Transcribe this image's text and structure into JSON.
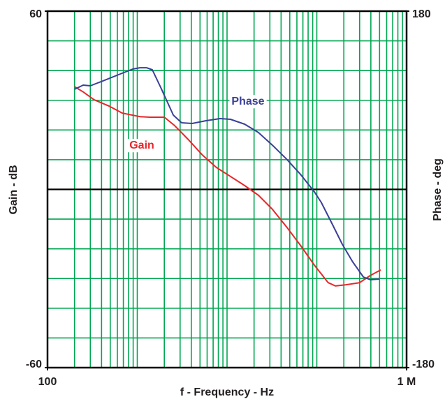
{
  "chart_data": {
    "type": "line",
    "xlabel": "f - Frequency - Hz",
    "ylabel": "Gain - dB",
    "y2label": "Phase - deg",
    "xscale": "log",
    "xlim": [
      100,
      1000000
    ],
    "xticks": [
      {
        "value": 100,
        "label": "100"
      },
      {
        "value": 1000000,
        "label": "1 M"
      }
    ],
    "xgrid": [
      200,
      300,
      400,
      500,
      600,
      700,
      800,
      900,
      1000,
      2000,
      3000,
      4000,
      5000,
      6000,
      7000,
      8000,
      9000,
      10000,
      20000,
      30000,
      40000,
      50000,
      60000,
      70000,
      80000,
      90000,
      100000,
      200000,
      300000,
      400000,
      500000,
      600000,
      700000,
      800000,
      900000
    ],
    "ylim": [
      -60,
      60
    ],
    "yticks": [
      -60,
      60
    ],
    "ygrid": [
      -50,
      -40,
      -30,
      -20,
      -10,
      0,
      10,
      20,
      30,
      40,
      50
    ],
    "y2lim": [
      -180,
      180
    ],
    "y2ticks": [
      -180,
      180
    ],
    "grid": true,
    "grid_color": "#00a651",
    "series": [
      {
        "name": "Gain",
        "color": "#e8262a",
        "x": [
          200,
          250,
          330,
          480,
          680,
          1070,
          1390,
          2000,
          2600,
          3700,
          5300,
          7600,
          11000,
          15700,
          22400,
          32000,
          46000,
          66000,
          94000,
          134000,
          161000,
          210000,
          300000,
          394000,
          515000
        ],
        "values": [
          34.6,
          32.8,
          30.2,
          28.1,
          25.7,
          24.5,
          24.3,
          24.3,
          21.5,
          16.8,
          11.6,
          7.4,
          4.3,
          1.3,
          -2.0,
          -6.7,
          -12.6,
          -18.9,
          -25.5,
          -31.4,
          -32.5,
          -32.1,
          -31.4,
          -29.0,
          -27.1
        ]
      },
      {
        "name": "Phase",
        "color": "#3a3f98",
        "axis": "y2",
        "x": [
          200,
          250,
          300,
          435,
          620,
          890,
          1070,
          1270,
          1470,
          1820,
          2520,
          3120,
          4080,
          5850,
          8360,
          10900,
          15700,
          22400,
          32000,
          46000,
          66000,
          94000,
          112000,
          147000,
          192000,
          250000,
          330000,
          394000,
          497000
        ],
        "values": [
          101.1,
          105.3,
          104.6,
          110.3,
          115.9,
          121.5,
          122.9,
          122.9,
          120.8,
          103.2,
          75.0,
          67.3,
          66.6,
          69.4,
          71.5,
          70.8,
          65.9,
          57.4,
          44.7,
          30.6,
          15.1,
          -2.5,
          -13.0,
          -34.2,
          -55.3,
          -72.9,
          -88.4,
          -91.2,
          -90.5
        ]
      }
    ]
  }
}
